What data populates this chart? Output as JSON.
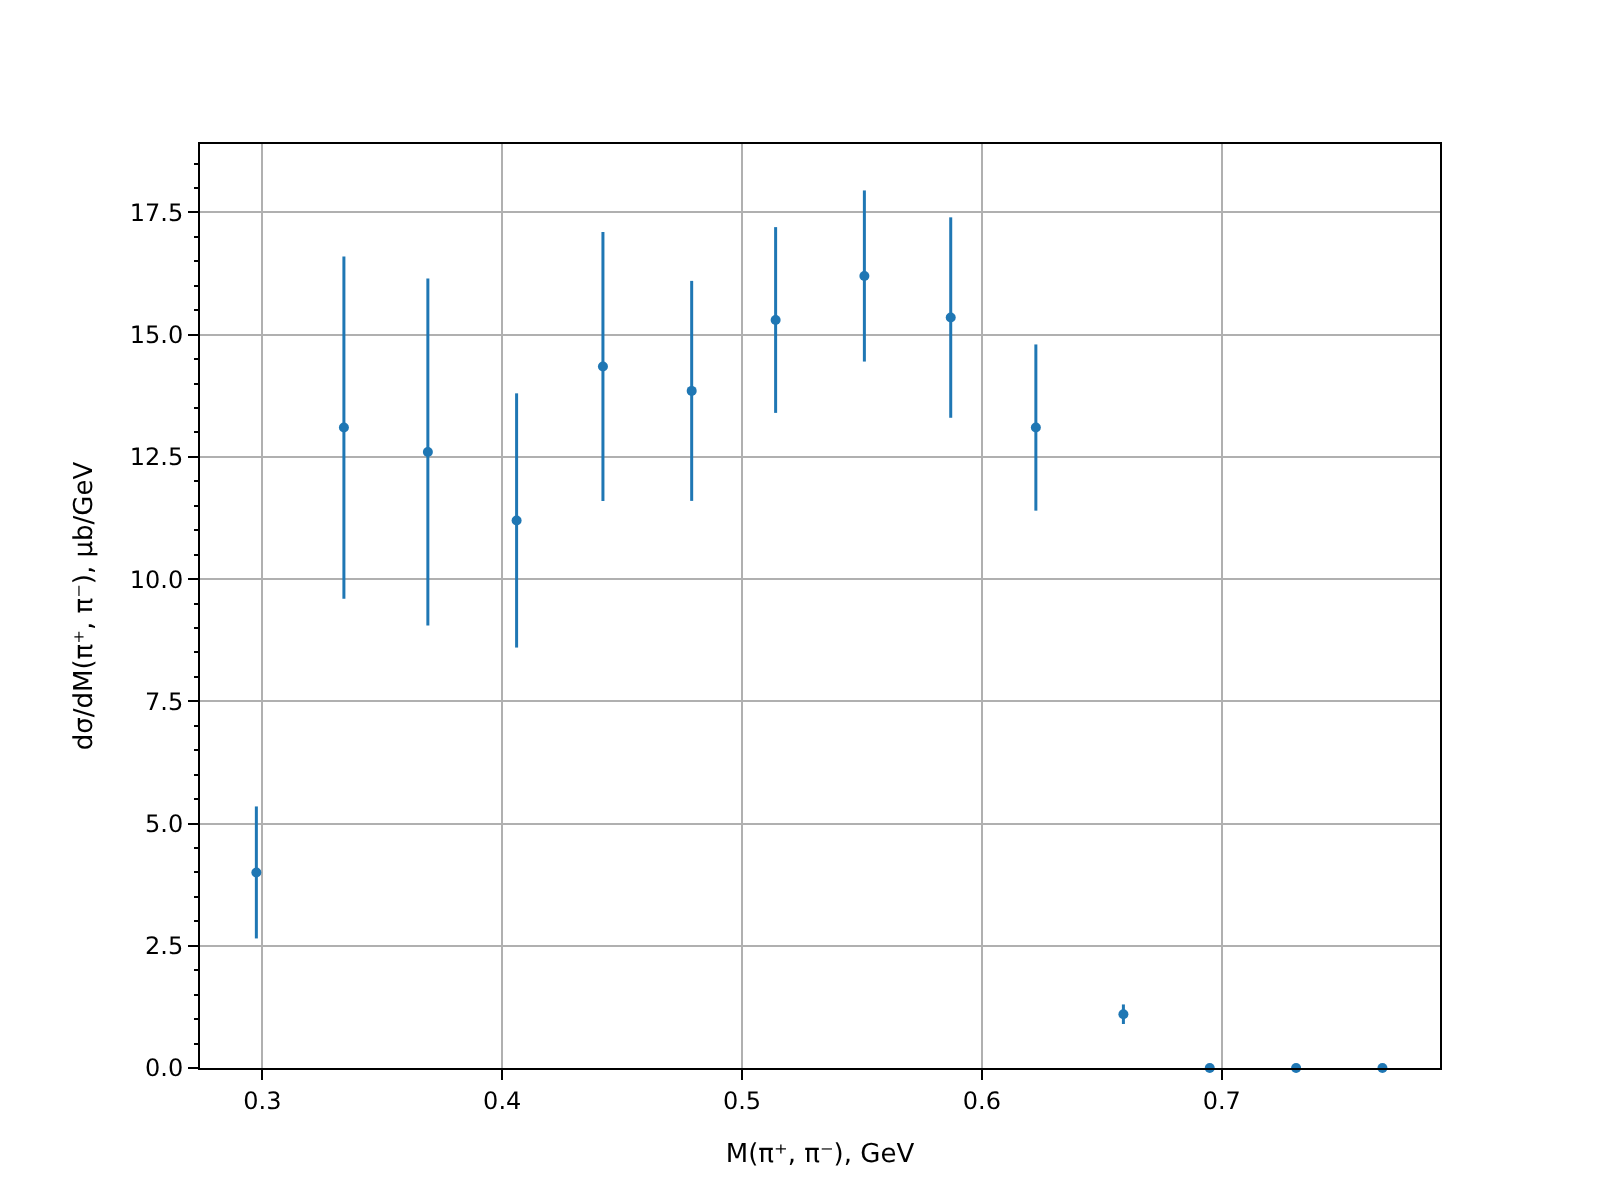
{
  "chart_data": {
    "type": "scatter",
    "xlabel": "M(π⁺, π⁻), GeV",
    "ylabel": "dσ/dM(π⁺, π⁻), μb/GeV",
    "x": [
      0.2975,
      0.334,
      0.369,
      0.406,
      0.442,
      0.479,
      0.514,
      0.551,
      0.587,
      0.6225,
      0.659,
      0.695,
      0.731,
      0.767
    ],
    "series": [
      {
        "color": "#1f77b4",
        "values": [
          4.0,
          13.1,
          12.6,
          11.2,
          14.35,
          13.85,
          15.3,
          16.2,
          15.35,
          13.1,
          1.1,
          0,
          0,
          0
        ],
        "errors": [
          1.35,
          3.5,
          3.55,
          2.6,
          2.75,
          2.25,
          1.9,
          1.75,
          2.05,
          1.7,
          0.2,
          0,
          0,
          0
        ]
      }
    ],
    "xlim": [
      0.274,
      0.791
    ],
    "ylim": [
      0,
      18.9
    ],
    "xticks": [
      0.3,
      0.4,
      0.5,
      0.6,
      0.7
    ],
    "yticks": [
      {
        "value": 0,
        "label": "0.0"
      },
      {
        "value": 2.5,
        "label": "2.5"
      },
      {
        "value": 5,
        "label": "5.0"
      },
      {
        "value": 7.5,
        "label": "7.5"
      },
      {
        "value": 10,
        "label": "10.0"
      },
      {
        "value": 12.5,
        "label": "12.5"
      },
      {
        "value": 15,
        "label": "15.0"
      },
      {
        "value": 17.5,
        "label": "17.5"
      }
    ],
    "grid": true,
    "marker": "circle"
  }
}
